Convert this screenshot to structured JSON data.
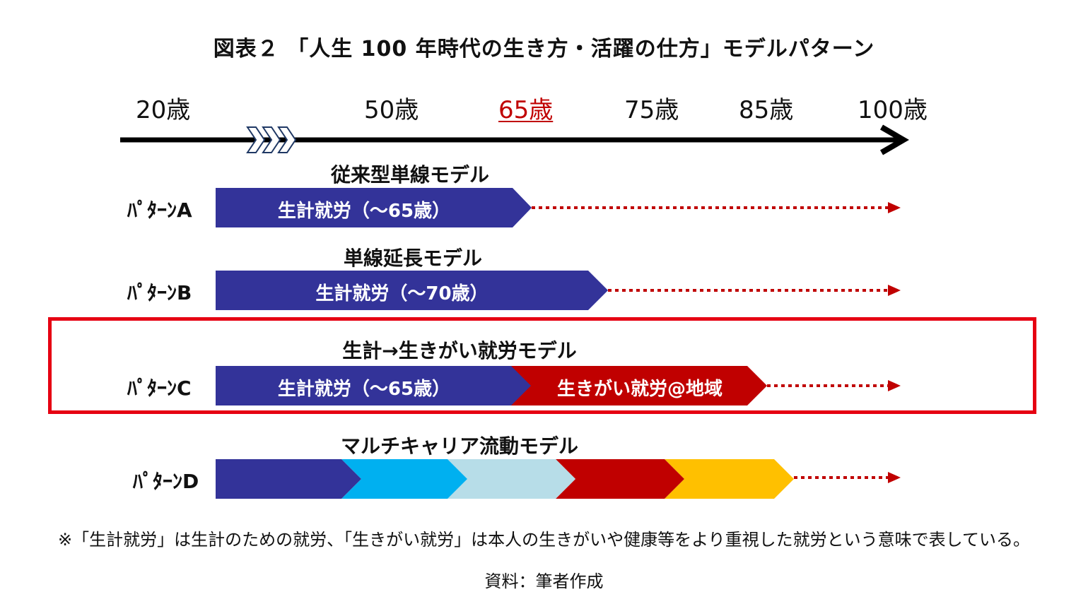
{
  "title": "図表２ 「人生 100 年時代の生き方・活躍の仕方」モデルパターン",
  "timeline": {
    "ages": [
      "20歳",
      "50歳",
      "65歳",
      "75歳",
      "85歳",
      "100歳"
    ],
    "highlighted_age": "65歳"
  },
  "patterns": [
    {
      "label": "ﾊﾟﾀｰﾝA",
      "model": "従来型単線モデル",
      "segments": [
        "生計就労（～65歳）"
      ]
    },
    {
      "label": "ﾊﾟﾀｰﾝB",
      "model": "単線延長モデル",
      "segments": [
        "生計就労（～70歳）"
      ]
    },
    {
      "label": "ﾊﾟﾀｰﾝC",
      "model": "生計→生きがい就労モデル",
      "segments": [
        "生計就労（～65歳）",
        "生きがい就労@地域"
      ]
    },
    {
      "label": "ﾊﾟﾀｰﾝD",
      "model": "マルチキャリア流動モデル",
      "segments": []
    }
  ],
  "colors": {
    "navy": "#333399",
    "red": "#c00000",
    "cyan": "#00b0f0",
    "light_blue": "#b7dde8",
    "yellow": "#ffc000",
    "highlight_border": "#e60012"
  },
  "note": "※「生計就労」は生計のための就労、「生きがい就労」は本人の生きがいや健康等をより重視した就労という意味で表している。",
  "source": "資料：筆者作成"
}
